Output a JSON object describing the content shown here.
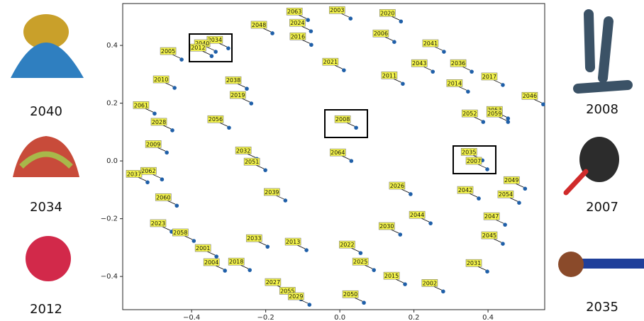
{
  "chart_data": {
    "type": "scatter",
    "x": [
      -0.086,
      0.029,
      0.165,
      -0.078,
      -0.182,
      0.147,
      -0.077,
      -0.301,
      -0.335,
      -0.346,
      -0.427,
      0.281,
      0.011,
      0.251,
      0.356,
      0.17,
      0.44,
      -0.446,
      -0.251,
      0.346,
      -0.239,
      0.549,
      -0.5,
      0.454,
      0.454,
      0.387,
      -0.299,
      0.044,
      -0.452,
      -0.467,
      -0.224,
      0.385,
      0.031,
      -0.201,
      0.398,
      -0.48,
      -0.519,
      0.5,
      0.191,
      0.375,
      -0.147,
      0.484,
      -0.44,
      0.245,
      0.446,
      -0.454,
      0.163,
      -0.394,
      0.44,
      -0.195,
      -0.09,
      0.056,
      -0.333,
      0.092,
      0.398,
      -0.31,
      -0.243,
      0.176,
      0.279,
      -0.144,
      -0.105,
      -0.082,
      0.065
    ],
    "values": [
      0.488,
      0.493,
      0.483,
      0.449,
      0.442,
      0.412,
      0.402,
      0.39,
      0.378,
      0.363,
      0.351,
      0.378,
      0.314,
      0.309,
      0.309,
      0.267,
      0.263,
      0.253,
      0.25,
      0.24,
      0.199,
      0.196,
      0.164,
      0.147,
      0.135,
      0.135,
      0.115,
      0.115,
      0.106,
      0.029,
      0.007,
      0.002,
      0.0,
      -0.032,
      -0.029,
      -0.064,
      -0.074,
      -0.096,
      -0.115,
      -0.13,
      -0.137,
      -0.145,
      -0.155,
      -0.216,
      -0.221,
      -0.245,
      -0.255,
      -0.277,
      -0.287,
      -0.297,
      -0.309,
      -0.319,
      -0.331,
      -0.378,
      -0.383,
      -0.38,
      -0.378,
      -0.427,
      -0.452,
      -0.449,
      -0.479,
      -0.498,
      -0.491
    ],
    "labels": [
      "2063",
      "2003",
      "2020",
      "2024",
      "2048",
      "2006",
      "2016",
      "2034",
      "2040",
      "2012",
      "2005",
      "2041",
      "2021",
      "2043",
      "2036",
      "2011",
      "2017",
      "2010",
      "2038",
      "2014",
      "2019",
      "2046",
      "2061",
      "2053",
      "2059",
      "2052",
      "2056",
      "2008",
      "2028",
      "2009",
      "2032",
      "2035",
      "2064",
      "2051",
      "2007",
      "2062",
      "2037",
      "2049",
      "2026",
      "2042",
      "2039",
      "2054",
      "2060",
      "2044",
      "2047",
      "2023",
      "2030",
      "2058",
      "2045",
      "2033",
      "2013",
      "2022",
      "2001",
      "2025",
      "2031",
      "2004",
      "2018",
      "2015",
      "2002",
      "2027",
      "2055",
      "2029",
      "2050"
    ],
    "color": "#1f5fa8",
    "xlim": [
      -0.586,
      0.553
    ],
    "ylim": [
      -0.515,
      0.545
    ],
    "xticks": [
      {
        "value": -0.4,
        "label": "−0.4"
      },
      {
        "value": -0.2,
        "label": "−0.2"
      },
      {
        "value": 0,
        "label": "0.0"
      },
      0.2,
      0.4
    ],
    "yticks": [
      {
        "value": -0.4,
        "label": "−0.4"
      },
      {
        "value": -0.2,
        "label": "−0.2"
      },
      {
        "value": 0,
        "label": "0.0"
      },
      0.2,
      0.4
    ]
  },
  "side_panels": [
    {
      "caption": "2040"
    },
    {
      "caption": "2034"
    },
    {
      "caption": "2012"
    },
    {
      "caption": "2008"
    },
    {
      "caption": "2007"
    },
    {
      "caption": "2035"
    }
  ]
}
